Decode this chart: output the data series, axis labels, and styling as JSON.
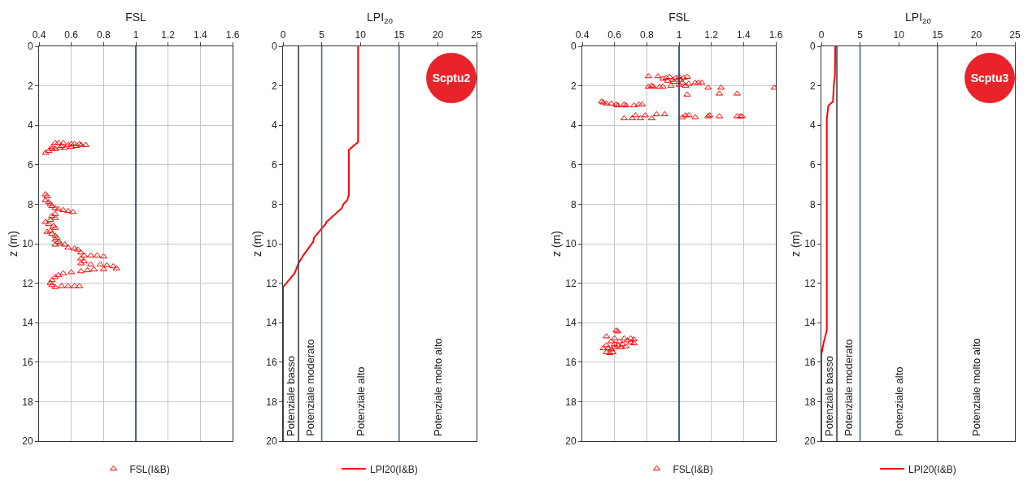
{
  "chart_data": [
    {
      "type": "scatter",
      "xlabel": "FSL",
      "ylabel": "z (m)",
      "xlim": [
        0.4,
        1.6
      ],
      "xticks": [
        0.4,
        0.6,
        0.8,
        1,
        1.2,
        1.4,
        1.6
      ],
      "ylim": [
        20,
        0
      ],
      "yticks": [
        0,
        2,
        4,
        6,
        8,
        10,
        12,
        14,
        16,
        18,
        20
      ],
      "grid": true,
      "legend": "bottom",
      "marker": "triangle",
      "ref_lines": [
        {
          "axis": "x",
          "value": 1,
          "color": "#1f3f6f"
        }
      ],
      "series": [
        {
          "name": "FSL(I&B)",
          "color": "#ff0000",
          "x": [
            0.44,
            0.46,
            0.48,
            0.5,
            0.53,
            0.56,
            0.6,
            0.63,
            0.66,
            0.69,
            0.65,
            0.62,
            0.5,
            0.52,
            0.55,
            0.58,
            0.6,
            0.48,
            0.54,
            0.44,
            0.45,
            0.44,
            0.46,
            0.47,
            0.48,
            0.5,
            0.52,
            0.55,
            0.58,
            0.61,
            0.5,
            0.48,
            0.5,
            0.47,
            0.44,
            0.46,
            0.49,
            0.5,
            0.47,
            0.45,
            0.48,
            0.5,
            0.51,
            0.5,
            0.52,
            0.5,
            0.53,
            0.56,
            0.58,
            0.62,
            0.64,
            0.66,
            0.68,
            0.72,
            0.76,
            0.8,
            0.66,
            0.68,
            0.66,
            0.72,
            0.78,
            0.82,
            0.86,
            0.88,
            0.8,
            0.74,
            0.7,
            0.66,
            0.6,
            0.55,
            0.52,
            0.5,
            0.48,
            0.47,
            0.48,
            0.5,
            0.54,
            0.58,
            0.62,
            0.65
          ],
          "values": [
            5.4,
            5.3,
            5.2,
            5.2,
            5.15,
            5.15,
            5.1,
            5.05,
            5.0,
            5.0,
            4.95,
            4.95,
            4.9,
            4.9,
            4.9,
            5.0,
            4.95,
            5.1,
            5.05,
            7.5,
            7.6,
            7.8,
            7.9,
            8.0,
            8.1,
            8.2,
            8.25,
            8.3,
            8.35,
            8.4,
            8.5,
            8.6,
            8.7,
            8.8,
            8.9,
            9.0,
            9.1,
            9.2,
            9.35,
            9.4,
            9.5,
            9.6,
            9.7,
            9.8,
            9.9,
            10.05,
            10.0,
            10.05,
            10.2,
            10.25,
            10.3,
            10.45,
            10.6,
            10.6,
            10.6,
            10.65,
            10.75,
            10.9,
            11.0,
            11.05,
            11.05,
            11.1,
            11.15,
            11.25,
            11.3,
            11.3,
            11.35,
            11.4,
            11.45,
            11.5,
            11.6,
            11.7,
            11.85,
            12.0,
            12.1,
            12.2,
            12.15,
            12.15,
            12.15,
            12.15
          ]
        }
      ]
    },
    {
      "type": "line",
      "xlabel": "LPI$_{20}$",
      "ylabel": "z (m)",
      "xlim": [
        0,
        25
      ],
      "xticks": [
        0,
        5,
        10,
        15,
        20,
        25
      ],
      "ylim": [
        20,
        0
      ],
      "yticks": [
        0,
        2,
        4,
        6,
        8,
        10,
        12,
        14,
        16,
        18,
        20
      ],
      "grid": false,
      "legend": "bottom",
      "annotations": [
        "Scptu2",
        "Potenziale basso",
        "Potenziale moderato",
        "Potenziale alto",
        "Potenziale molto alto"
      ],
      "ref_lines": [
        {
          "axis": "x",
          "value": 2,
          "color": "#404040"
        },
        {
          "axis": "x",
          "value": 5,
          "color": "#4f6f8f"
        },
        {
          "axis": "x",
          "value": 15,
          "color": "#4f6f8f"
        }
      ],
      "series": [
        {
          "name": "LPI20(I&B)",
          "color": "#ff0000",
          "x": [
            9.7,
            9.7,
            8.5,
            8.5,
            8.3,
            7.8,
            7.6,
            5.6,
            5.5,
            4.0,
            3.9,
            2.6,
            2.0,
            1.5,
            0,
            0
          ],
          "values": [
            0,
            4.85,
            5.25,
            7.5,
            7.8,
            8.0,
            8.2,
            8.9,
            9.0,
            9.7,
            9.9,
            10.6,
            11.0,
            11.5,
            12.2,
            20
          ]
        }
      ]
    },
    {
      "type": "scatter",
      "xlabel": "FSL",
      "ylabel": "z (m)",
      "xlim": [
        0.4,
        1.6
      ],
      "xticks": [
        0.4,
        0.6,
        0.8,
        1,
        1.2,
        1.4,
        1.6
      ],
      "ylim": [
        20,
        0
      ],
      "yticks": [
        0,
        2,
        4,
        6,
        8,
        10,
        12,
        14,
        16,
        18,
        20
      ],
      "grid": true,
      "legend": "bottom",
      "marker": "triangle",
      "ref_lines": [
        {
          "axis": "x",
          "value": 1,
          "color": "#1f3f6f"
        }
      ],
      "series": [
        {
          "name": "FSL(I&B)",
          "color": "#ff0000",
          "x": [
            0.81,
            0.87,
            0.9,
            0.92,
            0.94,
            0.96,
            0.98,
            1.0,
            1.01,
            1.03,
            1.05,
            0.93,
            0.97,
            1.02,
            1.06,
            1.1,
            1.12,
            1.14,
            1.04,
            1.0,
            0.95,
            0.9,
            0.88,
            0.84,
            0.81,
            0.83,
            1.18,
            1.26,
            1.59,
            1.05,
            1.25,
            1.36,
            0.52,
            0.53,
            0.55,
            0.58,
            0.61,
            0.62,
            0.66,
            0.67,
            0.72,
            0.75,
            0.77,
            0.66,
            0.71,
            0.73,
            0.76,
            0.79,
            0.83,
            0.86,
            0.91,
            1.02,
            1.04,
            1.06,
            1.1,
            1.18,
            1.19,
            1.25,
            1.36,
            1.38,
            1.39,
            0.61,
            0.62,
            0.55,
            0.6,
            0.66,
            0.7,
            0.72,
            0.58,
            0.63,
            0.68,
            0.72,
            0.7,
            0.65,
            0.6,
            0.55,
            0.53,
            0.56,
            0.6,
            0.64,
            0.67,
            0.55,
            0.57,
            0.59,
            0.62,
            0.58
          ],
          "values": [
            1.52,
            1.52,
            1.65,
            1.6,
            1.55,
            1.7,
            1.6,
            1.55,
            1.7,
            1.6,
            1.55,
            1.75,
            1.8,
            1.85,
            1.9,
            1.85,
            1.85,
            1.85,
            2.0,
            1.95,
            2.0,
            2.05,
            2.05,
            2.05,
            2.05,
            2.0,
            2.1,
            2.1,
            2.1,
            2.45,
            2.4,
            2.4,
            2.8,
            2.85,
            2.9,
            2.9,
            2.95,
            3.0,
            2.95,
            3.0,
            3.0,
            2.95,
            2.95,
            3.65,
            3.65,
            3.5,
            3.65,
            3.5,
            3.65,
            3.45,
            3.45,
            3.6,
            3.5,
            3.5,
            3.6,
            3.55,
            3.5,
            3.55,
            3.55,
            3.55,
            3.55,
            14.4,
            14.45,
            14.7,
            14.8,
            14.8,
            14.8,
            14.85,
            14.95,
            14.95,
            14.9,
            15.05,
            15.0,
            15.1,
            15.1,
            15.15,
            15.3,
            15.3,
            15.25,
            15.25,
            15.2,
            15.5,
            15.55,
            15.5,
            15.15,
            15.35
          ]
        }
      ]
    },
    {
      "type": "line",
      "xlabel": "LPI$_{20}$",
      "ylabel": "z (m)",
      "xlim": [
        0,
        25
      ],
      "xticks": [
        0,
        5,
        10,
        15,
        20,
        25
      ],
      "ylim": [
        20,
        0
      ],
      "yticks": [
        0,
        2,
        4,
        6,
        8,
        10,
        12,
        14,
        16,
        18,
        20
      ],
      "grid": false,
      "legend": "bottom",
      "annotations": [
        "Scptu3",
        "Potenziale basso",
        "Potenziale moderato",
        "Potenziale alto",
        "Potenziale molto alto"
      ],
      "ref_lines": [
        {
          "axis": "x",
          "value": 2,
          "color": "#404040"
        },
        {
          "axis": "x",
          "value": 5,
          "color": "#4f6f8f"
        },
        {
          "axis": "x",
          "value": 15,
          "color": "#4f6f8f"
        }
      ],
      "series": [
        {
          "name": "LPI20(I&B)",
          "color": "#ff0000",
          "x": [
            1.8,
            1.75,
            1.6,
            1.5,
            0.9,
            0.7,
            0.7,
            0.3,
            0,
            0
          ],
          "values": [
            0,
            1.5,
            2.0,
            2.8,
            3.0,
            3.7,
            14.4,
            15.0,
            15.6,
            20
          ]
        }
      ]
    }
  ]
}
